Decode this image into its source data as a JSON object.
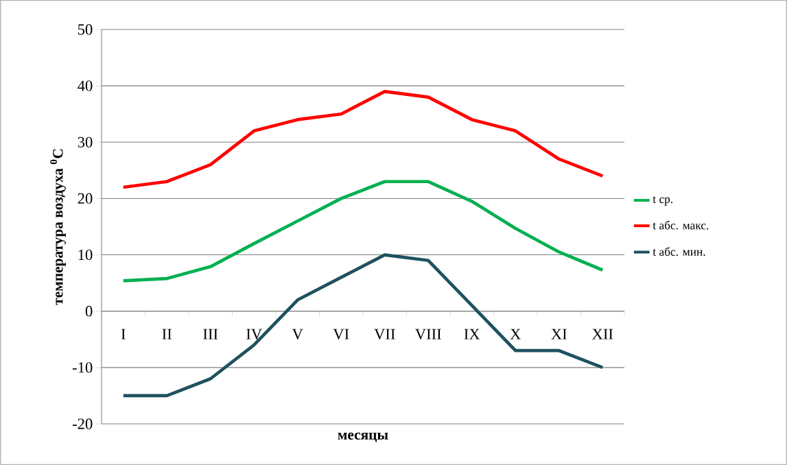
{
  "chart_data": {
    "type": "line",
    "xlabel": "месяцы",
    "ylabel": "температура воздуха $^{0}$C",
    "categories": [
      "I",
      "II",
      "III",
      "IV",
      "V",
      "VI",
      "VII",
      "VIII",
      "IX",
      "X",
      "XI",
      "XII"
    ],
    "series": [
      {
        "name": "t ср.",
        "color": "#00b050",
        "values": [
          5.4,
          5.8,
          7.9,
          12,
          16,
          20,
          23,
          23,
          19.5,
          14.7,
          10.5,
          7.3
        ]
      },
      {
        "name": "t абс. макс.",
        "color": "#ff0000",
        "values": [
          22,
          23,
          26,
          32,
          34,
          35,
          39,
          38,
          34,
          32,
          27,
          24
        ]
      },
      {
        "name": "t абс. мин.",
        "color": "#1f5160",
        "values": [
          -15,
          -15,
          -12,
          -6,
          2,
          6,
          10,
          9,
          1,
          -7,
          -7,
          -10
        ]
      }
    ],
    "ylim": [
      -20,
      50
    ],
    "yticks": [
      -20,
      -10,
      0,
      10,
      20,
      30,
      40,
      50
    ],
    "grid": "y",
    "legend": "right"
  }
}
